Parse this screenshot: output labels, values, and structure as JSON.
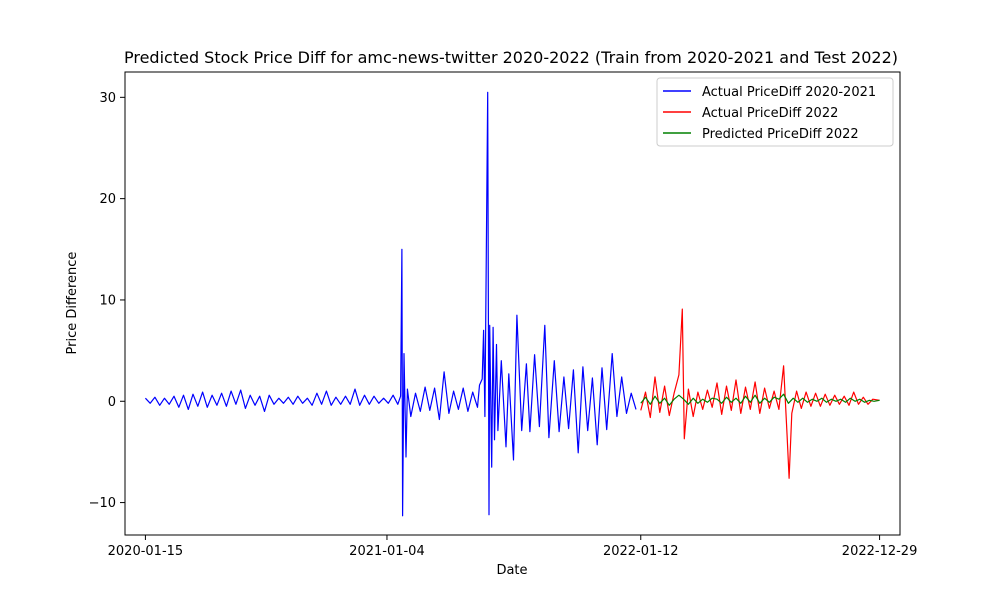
{
  "chart_data": {
    "type": "line",
    "title": "Predicted Stock Price Diff for amc-news-twitter 2020-2022 (Train from 2020-2021 and Test 2022)",
    "xlabel": "Date",
    "ylabel": "Price Difference",
    "x_range": [
      "2019-12-16",
      "2023-01-28"
    ],
    "ylim": [
      -13.2,
      32.5
    ],
    "xticks": [
      "2020-01-15",
      "2021-01-04",
      "2022-01-12",
      "2022-12-29"
    ],
    "yticks": [
      -10,
      0,
      10,
      20,
      30
    ],
    "grid": false,
    "legend_position": "top-right",
    "series": [
      {
        "name": "Actual PriceDiff 2020-2021",
        "color": "#0000ff",
        "points": [
          [
            "2020-01-15",
            0.3
          ],
          [
            "2020-01-22",
            -0.2
          ],
          [
            "2020-01-29",
            0.4
          ],
          [
            "2020-02-05",
            -0.4
          ],
          [
            "2020-02-12",
            0.3
          ],
          [
            "2020-02-19",
            -0.3
          ],
          [
            "2020-02-26",
            0.5
          ],
          [
            "2020-03-04",
            -0.6
          ],
          [
            "2020-03-11",
            0.6
          ],
          [
            "2020-03-18",
            -0.8
          ],
          [
            "2020-03-25",
            0.7
          ],
          [
            "2020-04-01",
            -0.5
          ],
          [
            "2020-04-08",
            0.9
          ],
          [
            "2020-04-15",
            -0.6
          ],
          [
            "2020-04-22",
            0.6
          ],
          [
            "2020-04-29",
            -0.4
          ],
          [
            "2020-05-06",
            0.8
          ],
          [
            "2020-05-13",
            -0.5
          ],
          [
            "2020-05-20",
            1.0
          ],
          [
            "2020-05-27",
            -0.3
          ],
          [
            "2020-06-03",
            1.1
          ],
          [
            "2020-06-10",
            -0.7
          ],
          [
            "2020-06-17",
            0.6
          ],
          [
            "2020-06-24",
            -0.4
          ],
          [
            "2020-07-01",
            0.5
          ],
          [
            "2020-07-08",
            -1.0
          ],
          [
            "2020-07-15",
            0.6
          ],
          [
            "2020-07-22",
            -0.3
          ],
          [
            "2020-07-29",
            0.3
          ],
          [
            "2020-08-05",
            -0.2
          ],
          [
            "2020-08-12",
            0.4
          ],
          [
            "2020-08-19",
            -0.3
          ],
          [
            "2020-08-26",
            0.5
          ],
          [
            "2020-09-02",
            -0.2
          ],
          [
            "2020-09-09",
            0.3
          ],
          [
            "2020-09-16",
            -0.4
          ],
          [
            "2020-09-23",
            0.8
          ],
          [
            "2020-09-30",
            -0.3
          ],
          [
            "2020-10-07",
            1.0
          ],
          [
            "2020-10-14",
            -0.4
          ],
          [
            "2020-10-21",
            0.4
          ],
          [
            "2020-10-28",
            -0.3
          ],
          [
            "2020-11-04",
            0.5
          ],
          [
            "2020-11-11",
            -0.3
          ],
          [
            "2020-11-18",
            1.2
          ],
          [
            "2020-11-25",
            -0.4
          ],
          [
            "2020-12-02",
            0.6
          ],
          [
            "2020-12-09",
            -0.3
          ],
          [
            "2020-12-16",
            0.5
          ],
          [
            "2020-12-23",
            -0.2
          ],
          [
            "2020-12-30",
            0.3
          ],
          [
            "2021-01-06",
            -0.2
          ],
          [
            "2021-01-13",
            0.6
          ],
          [
            "2021-01-20",
            -0.3
          ],
          [
            "2021-01-24",
            0.5
          ],
          [
            "2021-01-26",
            15.0
          ],
          [
            "2021-01-27",
            -11.3
          ],
          [
            "2021-01-29",
            4.7
          ],
          [
            "2021-02-01",
            -5.5
          ],
          [
            "2021-02-03",
            1.2
          ],
          [
            "2021-02-08",
            -1.5
          ],
          [
            "2021-02-15",
            0.8
          ],
          [
            "2021-02-22",
            -1.0
          ],
          [
            "2021-03-01",
            1.4
          ],
          [
            "2021-03-08",
            -0.9
          ],
          [
            "2021-03-15",
            1.3
          ],
          [
            "2021-03-22",
            -1.8
          ],
          [
            "2021-03-29",
            2.9
          ],
          [
            "2021-04-05",
            -1.2
          ],
          [
            "2021-04-12",
            1.0
          ],
          [
            "2021-04-19",
            -0.8
          ],
          [
            "2021-04-26",
            1.3
          ],
          [
            "2021-05-03",
            -1.0
          ],
          [
            "2021-05-10",
            0.9
          ],
          [
            "2021-05-17",
            -0.6
          ],
          [
            "2021-05-20",
            1.6
          ],
          [
            "2021-05-24",
            2.2
          ],
          [
            "2021-05-26",
            7.0
          ],
          [
            "2021-05-28",
            -1.5
          ],
          [
            "2021-06-01",
            30.5
          ],
          [
            "2021-06-03",
            -11.2
          ],
          [
            "2021-06-04",
            7.5
          ],
          [
            "2021-06-07",
            -6.5
          ],
          [
            "2021-06-09",
            7.3
          ],
          [
            "2021-06-11",
            -3.8
          ],
          [
            "2021-06-14",
            5.6
          ],
          [
            "2021-06-16",
            -2.9
          ],
          [
            "2021-06-21",
            4.0
          ],
          [
            "2021-06-28",
            -4.5
          ],
          [
            "2021-07-02",
            2.7
          ],
          [
            "2021-07-09",
            -5.8
          ],
          [
            "2021-07-14",
            8.5
          ],
          [
            "2021-07-21",
            -2.9
          ],
          [
            "2021-07-28",
            3.7
          ],
          [
            "2021-08-02",
            -3.0
          ],
          [
            "2021-08-09",
            4.6
          ],
          [
            "2021-08-16",
            -2.5
          ],
          [
            "2021-08-24",
            7.5
          ],
          [
            "2021-08-30",
            -3.6
          ],
          [
            "2021-09-07",
            4.0
          ],
          [
            "2021-09-14",
            -3.0
          ],
          [
            "2021-09-21",
            2.4
          ],
          [
            "2021-09-28",
            -2.7
          ],
          [
            "2021-10-05",
            3.1
          ],
          [
            "2021-10-12",
            -5.1
          ],
          [
            "2021-10-19",
            3.4
          ],
          [
            "2021-10-26",
            -2.9
          ],
          [
            "2021-11-02",
            2.3
          ],
          [
            "2021-11-09",
            -4.3
          ],
          [
            "2021-11-16",
            3.3
          ],
          [
            "2021-11-23",
            -2.8
          ],
          [
            "2021-12-01",
            4.7
          ],
          [
            "2021-12-08",
            -1.5
          ],
          [
            "2021-12-15",
            2.4
          ],
          [
            "2021-12-22",
            -1.2
          ],
          [
            "2021-12-29",
            0.8
          ],
          [
            "2022-01-05",
            -0.8
          ]
        ]
      },
      {
        "name": "Actual PriceDiff 2022",
        "color": "#ff0000",
        "points": [
          [
            "2022-01-12",
            -0.9
          ],
          [
            "2022-01-19",
            0.9
          ],
          [
            "2022-01-26",
            -1.6
          ],
          [
            "2022-02-02",
            2.4
          ],
          [
            "2022-02-09",
            -1.1
          ],
          [
            "2022-02-16",
            1.5
          ],
          [
            "2022-02-23",
            -1.4
          ],
          [
            "2022-03-02",
            0.8
          ],
          [
            "2022-03-09",
            2.6
          ],
          [
            "2022-03-14",
            9.1
          ],
          [
            "2022-03-17",
            -3.7
          ],
          [
            "2022-03-23",
            1.2
          ],
          [
            "2022-03-30",
            -1.5
          ],
          [
            "2022-04-06",
            0.9
          ],
          [
            "2022-04-13",
            -0.8
          ],
          [
            "2022-04-20",
            1.1
          ],
          [
            "2022-04-27",
            -0.6
          ],
          [
            "2022-05-04",
            1.8
          ],
          [
            "2022-05-11",
            -1.3
          ],
          [
            "2022-05-18",
            1.5
          ],
          [
            "2022-05-25",
            -0.9
          ],
          [
            "2022-06-01",
            2.1
          ],
          [
            "2022-06-08",
            -1.2
          ],
          [
            "2022-06-15",
            1.4
          ],
          [
            "2022-06-22",
            -0.8
          ],
          [
            "2022-06-29",
            1.9
          ],
          [
            "2022-07-06",
            -1.2
          ],
          [
            "2022-07-13",
            1.3
          ],
          [
            "2022-07-20",
            -0.7
          ],
          [
            "2022-07-27",
            1.0
          ],
          [
            "2022-08-03",
            -0.8
          ],
          [
            "2022-08-10",
            3.5
          ],
          [
            "2022-08-15",
            -3.4
          ],
          [
            "2022-08-18",
            -7.6
          ],
          [
            "2022-08-22",
            -1.2
          ],
          [
            "2022-08-29",
            1.0
          ],
          [
            "2022-09-05",
            -0.7
          ],
          [
            "2022-09-12",
            0.9
          ],
          [
            "2022-09-19",
            -0.5
          ],
          [
            "2022-09-26",
            0.8
          ],
          [
            "2022-10-03",
            -0.5
          ],
          [
            "2022-10-10",
            0.7
          ],
          [
            "2022-10-17",
            -0.4
          ],
          [
            "2022-10-24",
            0.6
          ],
          [
            "2022-10-31",
            -0.3
          ],
          [
            "2022-11-07",
            0.5
          ],
          [
            "2022-11-14",
            -0.4
          ],
          [
            "2022-11-21",
            0.9
          ],
          [
            "2022-11-28",
            -0.3
          ],
          [
            "2022-12-05",
            0.4
          ],
          [
            "2022-12-12",
            -0.3
          ],
          [
            "2022-12-19",
            0.2
          ],
          [
            "2022-12-29",
            0.1
          ]
        ]
      },
      {
        "name": "Predicted PriceDiff 2022",
        "color": "#008000",
        "points": [
          [
            "2022-01-12",
            -0.2
          ],
          [
            "2022-01-19",
            0.4
          ],
          [
            "2022-01-26",
            -0.3
          ],
          [
            "2022-02-02",
            0.5
          ],
          [
            "2022-02-09",
            -0.2
          ],
          [
            "2022-02-16",
            0.3
          ],
          [
            "2022-02-23",
            -0.4
          ],
          [
            "2022-03-02",
            0.2
          ],
          [
            "2022-03-09",
            0.6
          ],
          [
            "2022-03-16",
            0.2
          ],
          [
            "2022-03-23",
            -0.3
          ],
          [
            "2022-03-30",
            0.3
          ],
          [
            "2022-04-06",
            -0.2
          ],
          [
            "2022-04-13",
            0.2
          ],
          [
            "2022-04-20",
            -0.1
          ],
          [
            "2022-04-27",
            0.3
          ],
          [
            "2022-05-04",
            0.2
          ],
          [
            "2022-05-11",
            -0.2
          ],
          [
            "2022-05-18",
            0.4
          ],
          [
            "2022-05-25",
            -0.1
          ],
          [
            "2022-06-01",
            0.3
          ],
          [
            "2022-06-08",
            -0.2
          ],
          [
            "2022-06-15",
            0.5
          ],
          [
            "2022-06-22",
            -0.1
          ],
          [
            "2022-06-29",
            0.6
          ],
          [
            "2022-07-06",
            -0.2
          ],
          [
            "2022-07-13",
            0.3
          ],
          [
            "2022-07-20",
            -0.1
          ],
          [
            "2022-07-27",
            0.4
          ],
          [
            "2022-08-03",
            0.2
          ],
          [
            "2022-08-10",
            0.7
          ],
          [
            "2022-08-17",
            -0.2
          ],
          [
            "2022-08-24",
            0.3
          ],
          [
            "2022-08-31",
            -0.1
          ],
          [
            "2022-09-07",
            0.3
          ],
          [
            "2022-09-14",
            -0.1
          ],
          [
            "2022-09-21",
            0.2
          ],
          [
            "2022-09-28",
            0.0
          ],
          [
            "2022-10-05",
            0.3
          ],
          [
            "2022-10-12",
            -0.1
          ],
          [
            "2022-10-19",
            0.2
          ],
          [
            "2022-10-26",
            0.0
          ],
          [
            "2022-11-02",
            0.2
          ],
          [
            "2022-11-09",
            -0.1
          ],
          [
            "2022-11-16",
            0.3
          ],
          [
            "2022-11-23",
            0.0
          ],
          [
            "2022-11-30",
            0.2
          ],
          [
            "2022-12-07",
            -0.1
          ],
          [
            "2022-12-14",
            0.1
          ],
          [
            "2022-12-21",
            0.0
          ],
          [
            "2022-12-29",
            0.1
          ]
        ]
      }
    ]
  }
}
